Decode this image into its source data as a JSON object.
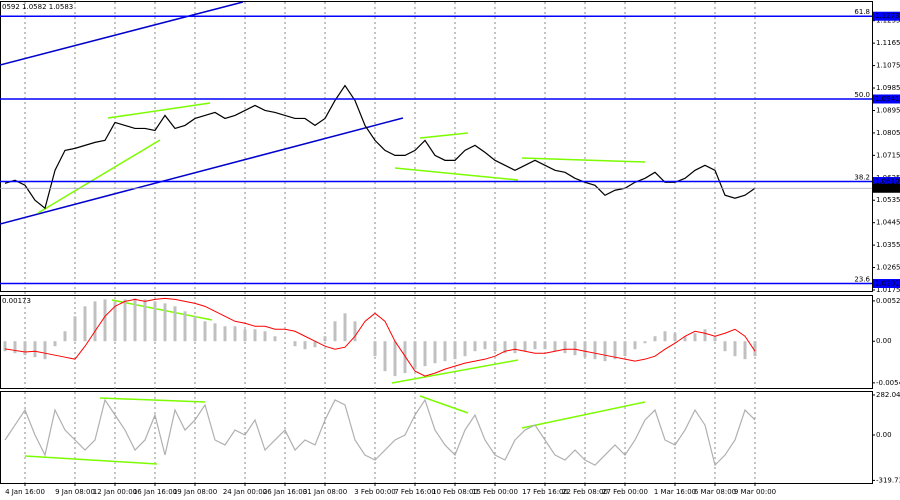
{
  "chart_data": [
    {
      "type": "line",
      "title": "0592 1.0582 1.0583",
      "color": "#000000",
      "values": [
        1.0603,
        1.0615,
        1.0595,
        1.0535,
        1.0503,
        1.0655,
        1.0735,
        1.0743,
        1.0755,
        1.0767,
        1.0775,
        1.0847,
        1.0835,
        1.0823,
        1.0823,
        1.0815,
        1.0875,
        1.0823,
        1.0835,
        1.0863,
        1.0875,
        1.0887,
        1.0863,
        1.0875,
        1.0895,
        1.0915,
        1.0895,
        1.0887,
        1.0875,
        1.0863,
        1.0863,
        1.0835,
        1.0863,
        1.0935,
        1.0995,
        1.0935,
        1.0835,
        1.0775,
        1.0735,
        1.0715,
        1.0715,
        1.0735,
        1.0775,
        1.0715,
        1.0695,
        1.0695,
        1.0735,
        1.0755,
        1.0727,
        1.0695,
        1.0675,
        1.0655,
        1.0675,
        1.0695,
        1.0675,
        1.0655,
        1.0647,
        1.0623,
        1.0607,
        1.0595,
        1.0555,
        1.0575,
        1.0583,
        1.0607,
        1.0623,
        1.0647,
        1.0607,
        1.0607,
        1.0623,
        1.0655,
        1.0675,
        1.0655,
        1.0555,
        1.0543,
        1.0555,
        1.0583
      ],
      "ylim": [
        1.0175,
        1.133
      ],
      "yticks": [
        1.1255,
        1.1165,
        1.1075,
        1.0985,
        1.0895,
        1.0805,
        1.0715,
        1.0625,
        1.0535,
        1.0445,
        1.0355,
        1.0265,
        1.0175
      ],
      "levels": [
        {
          "name": "61.8",
          "value": 1.1273,
          "color": "#0000ff"
        },
        {
          "name": "50.0",
          "value": 1.0941,
          "color": "#0000ff"
        },
        {
          "name": "38.2",
          "value": 1.061,
          "label": "1.0610",
          "color": "#0000ff"
        },
        {
          "name": "23.6",
          "value": 1.0201,
          "color": "#0000ff"
        },
        {
          "value": 1.0583,
          "color": "#000000"
        }
      ]
    },
    {
      "type": "bar",
      "title": "0.00173",
      "color": "#c0c0c0",
      "line_color": "#ff0000",
      "values": [
        -0.0013,
        -0.00156,
        -0.00182,
        -0.00208,
        -0.00234,
        -0.00065,
        0.0013,
        0.00325,
        0.00455,
        0.0052,
        0.00546,
        0.0052,
        0.00546,
        0.00559,
        0.00546,
        0.0052,
        0.00494,
        0.00455,
        0.0039,
        0.00325,
        0.0026,
        0.00234,
        0.00195,
        0.00195,
        0.00156,
        0.00156,
        0.0013,
        0.00065,
        0,
        -0.00065,
        -0.00104,
        -0.00078,
        0.00065,
        0.0026,
        0.00364,
        0.0026,
        0,
        -0.00195,
        -0.0039,
        -0.00455,
        -0.00416,
        -0.00364,
        -0.00325,
        -0.00286,
        -0.0026,
        -0.00234,
        -0.00195,
        -0.0013,
        -0.00104,
        -0.0013,
        -0.00156,
        -0.00156,
        -0.0013,
        -0.00104,
        -0.00104,
        -0.0013,
        -0.00156,
        -0.00182,
        -0.00208,
        -0.00234,
        -0.0026,
        -0.00234,
        -0.00195,
        -0.00104,
        -0.00026,
        0.00065,
        0.0013,
        0.00104,
        0.00065,
        0.00104,
        0.00156,
        0.00065,
        -0.0013,
        -0.00195,
        -0.00234,
        -0.00195
      ],
      "line_values": [
        -0.001,
        -0.0012,
        -0.0014,
        -0.0013,
        -0.00156,
        -0.00182,
        -0.00208,
        -0.00234,
        -0.00065,
        0.0013,
        0.00325,
        0.00455,
        0.0052,
        0.00546,
        0.0052,
        0.00546,
        0.00559,
        0.00546,
        0.0052,
        0.00494,
        0.00455,
        0.0039,
        0.00325,
        0.0026,
        0.00234,
        0.00195,
        0.00195,
        0.00156,
        0.00156,
        0.0013,
        0.00065,
        0,
        -0.00065,
        -0.00104,
        -0.00078,
        0.00065,
        0.0026,
        0.00364,
        0.0026,
        0,
        -0.00195,
        -0.0039,
        -0.00455,
        -0.00416,
        -0.00364,
        -0.00325,
        -0.00286,
        -0.0026,
        -0.00234,
        -0.00195,
        -0.0013,
        -0.00104,
        -0.0013,
        -0.00156,
        -0.00156,
        -0.0013,
        -0.00104,
        -0.00104,
        -0.0013,
        -0.00156,
        -0.00182,
        -0.00208,
        -0.00234,
        -0.0026,
        -0.00234,
        -0.00195,
        -0.00104,
        -0.00026,
        0.00065,
        0.0013,
        0.00104,
        0.00065,
        0.00104,
        0.00156,
        0.00065,
        -0.0013
      ],
      "ylim": [
        -0.0061,
        0.0059
      ],
      "yticks": [
        0.00526,
        {
          "value": 0,
          "label": "0.00"
        },
        -0.00543
      ]
    },
    {
      "type": "line",
      "color": "#b0b0b0",
      "values": [
        -35,
        70,
        176,
        0,
        -141,
        176,
        35,
        -35,
        -106,
        -35,
        247,
        141,
        35,
        -106,
        -35,
        141,
        -141,
        176,
        35,
        106,
        212,
        -35,
        -70,
        35,
        0,
        106,
        -106,
        -35,
        35,
        -106,
        -35,
        -70,
        106,
        247,
        212,
        -35,
        -141,
        -176,
        -106,
        -35,
        0,
        141,
        247,
        35,
        -70,
        -141,
        35,
        141,
        -35,
        -141,
        -176,
        -35,
        35,
        70,
        -35,
        -141,
        -176,
        -106,
        -176,
        -212,
        -141,
        -70,
        -141,
        -35,
        106,
        176,
        -35,
        -70,
        35,
        176,
        70,
        -212,
        -141,
        -35,
        176,
        106
      ],
      "ylim": [
        -338,
        303
      ],
      "yticks": [
        282.0457,
        {
          "value": 0,
          "label": "0.00"
        },
        -319.7305
      ],
      "categories": [
        null,
        null,
        "4 Jan 16:00",
        null,
        null,
        null,
        null,
        "9 Jan 08:00",
        null,
        null,
        null,
        "12 Jan 00:00",
        null,
        null,
        null,
        "16 Jan 16:00",
        null,
        null,
        null,
        "19 Jan 08:00",
        null,
        null,
        null,
        null,
        "24 Jan 00:00",
        null,
        null,
        null,
        "26 Jan 16:00",
        null,
        null,
        null,
        "31 Jan 08:00",
        null,
        null,
        null,
        null,
        "3 Feb 00:00",
        null,
        null,
        null,
        "7 Feb 16:00",
        null,
        null,
        null,
        "10 Feb 08:00",
        null,
        null,
        null,
        "15 Feb 00:00",
        null,
        null,
        null,
        null,
        "17 Feb 16:00",
        null,
        null,
        null,
        "22 Feb 08:00",
        null,
        null,
        null,
        "27 Feb 00:00",
        null,
        null,
        null,
        null,
        "1 Mar 16:00",
        null,
        null,
        null,
        "6 Mar 08:00",
        null,
        null,
        null,
        "9 Mar 00:00"
      ],
      "grid": true
    }
  ]
}
